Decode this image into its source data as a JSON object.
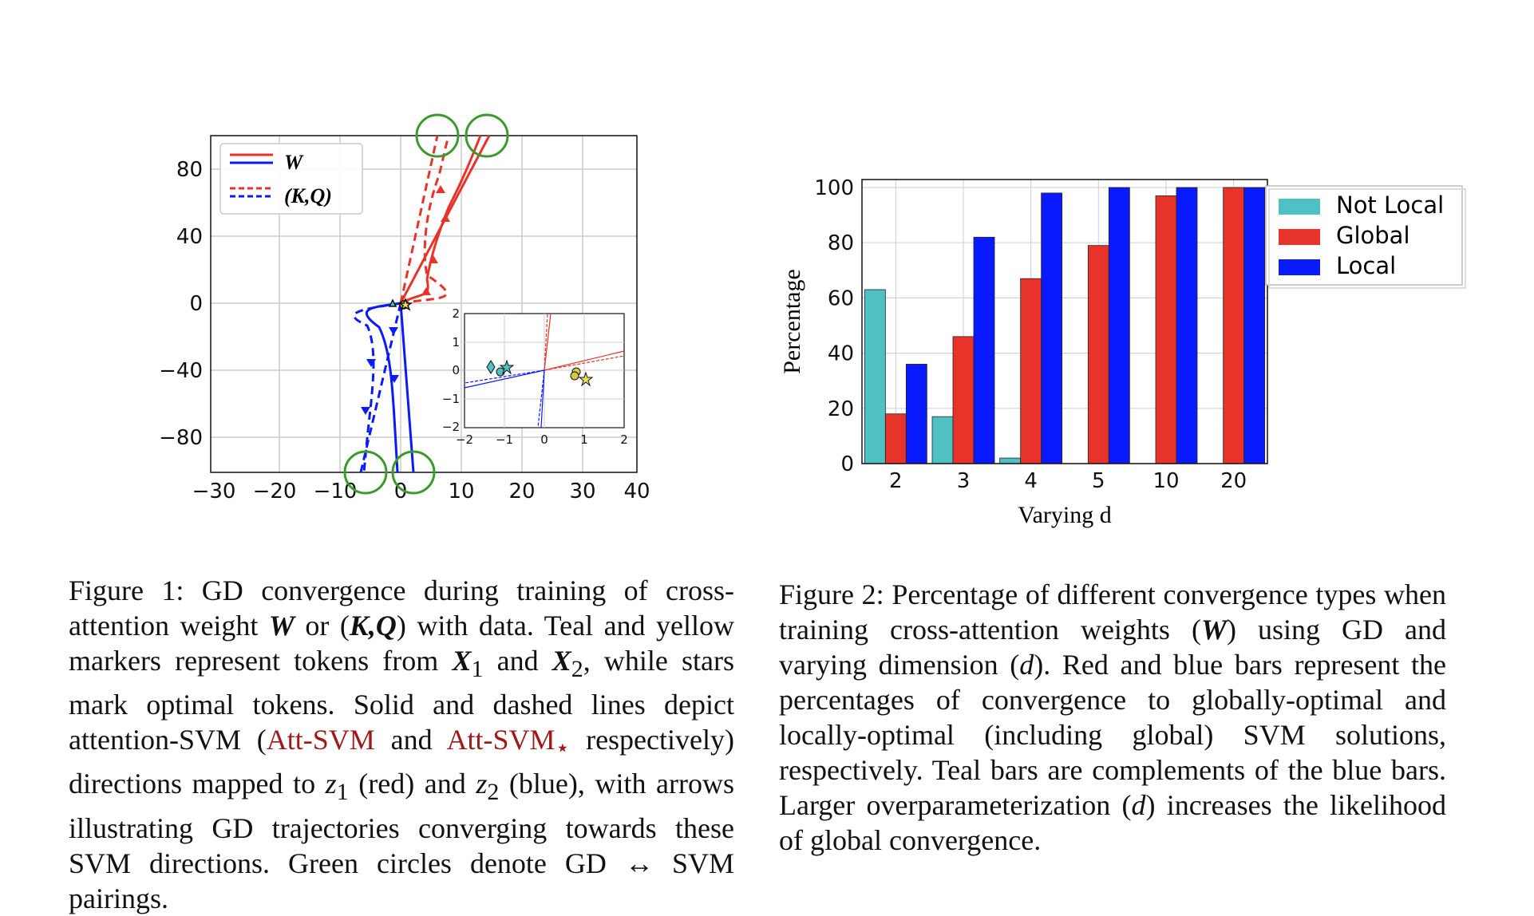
{
  "figure1": {
    "legend": {
      "solid_label": "W",
      "dashed_label": "(K,Q)"
    },
    "x_ticks": [
      "−30",
      "−20",
      "−10",
      "0",
      "10",
      "20",
      "30",
      "40"
    ],
    "y_ticks": [
      "80",
      "40",
      "0",
      "−40",
      "−80"
    ],
    "inset_x_ticks": [
      "−2",
      "−1",
      "0",
      "1",
      "2"
    ],
    "inset_y_ticks": [
      "2",
      "1",
      "0",
      "−1",
      "−2"
    ],
    "caption": {
      "prefix": "Figure 1:  GD convergence during training of cross-attention weight ",
      "w": "W",
      "or": " or (",
      "kq": "K,Q",
      "mid1": ") with data.  Teal and yellow markers represent tokens from ",
      "x1": "X",
      "sub1": "1",
      "and": " and ",
      "x2": "X",
      "sub2": "2",
      "mid2": ", while stars mark optimal tokens. Solid and dashed lines depict attention-SVM (",
      "att1": "Att-SVM",
      "and2": " and ",
      "att2": "Att-SVM",
      "star": "⋆",
      "mid3": " respectively) directions mapped to ",
      "z1": "z",
      "zsub1": "1",
      "red": " (red) and ",
      "z2": "z",
      "zsub2": "2",
      "end": " (blue), with arrows illustrating GD trajectories converging towards these SVM directions. Green circles denote GD ↔ SVM pairings."
    }
  },
  "chart_data": {
    "type": "bar",
    "categories": [
      "2",
      "3",
      "4",
      "5",
      "10",
      "20"
    ],
    "series": [
      {
        "name": "Not Local",
        "color": "#4fc1c4",
        "values": [
          63,
          17,
          2,
          0,
          0,
          0
        ]
      },
      {
        "name": "Global",
        "color": "#e8332a",
        "values": [
          18,
          46,
          67,
          79,
          97,
          100
        ]
      },
      {
        "name": "Local",
        "color": "#0a1aff",
        "values": [
          36,
          82,
          98,
          100,
          100,
          100
        ]
      }
    ],
    "xlabel": "Varying d",
    "ylabel": "Percentage",
    "ylim": [
      0,
      100
    ],
    "yticks": [
      "0",
      "20",
      "40",
      "60",
      "80",
      "100"
    ],
    "legend_position": "top-right"
  },
  "figure2": {
    "caption": {
      "prefix": "Figure 2:  Percentage of different convergence types when training cross-attention weights (",
      "w": "W",
      "mid1": ") using GD and varying dimension (",
      "d1": "d",
      "mid2": "). Red and blue bars represent the percentages of convergence to globally-optimal and locally-optimal (including global) SVM solutions, respectively. Teal bars are complements of the blue bars. Larger overparameterization (",
      "d2": "d",
      "end": ") increases the likelihood of global convergence."
    }
  }
}
